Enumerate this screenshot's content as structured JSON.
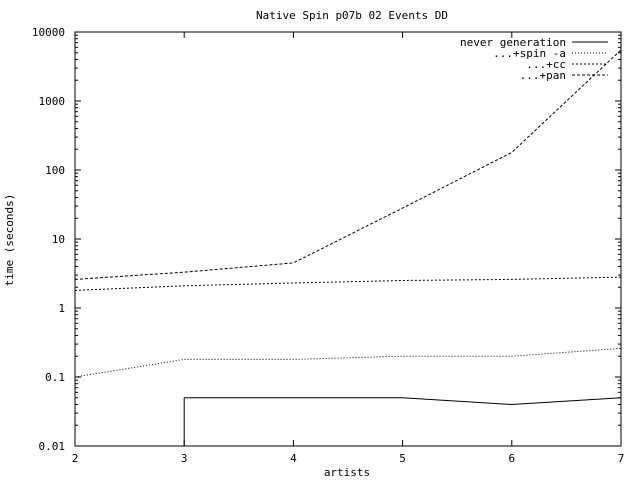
{
  "chart_data": {
    "type": "line",
    "title": "Native Spin p07b 02 Events DD",
    "xlabel": "artists",
    "ylabel": "time (seconds)",
    "x": [
      2,
      3,
      4,
      5,
      6,
      7
    ],
    "xlim": [
      2,
      7
    ],
    "ylim": [
      0.01,
      10000
    ],
    "yscale": "log",
    "x_ticks": [
      "2",
      "3",
      "4",
      "5",
      "6",
      "7"
    ],
    "y_ticks": [
      {
        "value": 0.01,
        "label": "0.01"
      },
      {
        "value": 0.1,
        "label": "0.1"
      },
      {
        "value": 1,
        "label": "1"
      },
      {
        "value": 10,
        "label": "10"
      },
      {
        "value": 100,
        "label": "100"
      },
      {
        "value": 1000,
        "label": "1000"
      },
      {
        "value": 10000,
        "label": "10000"
      }
    ],
    "grid": false,
    "legend_position": "top-right",
    "series": [
      {
        "name": "never generation",
        "dash": "solid",
        "x": [
          3,
          4,
          5,
          6,
          7
        ],
        "values": [
          0.05,
          0.05,
          0.05,
          0.04,
          0.05
        ]
      },
      {
        "name": "...+spin -a",
        "dash": "dotted",
        "x": [
          2,
          3,
          4,
          5,
          6,
          7
        ],
        "values": [
          0.1,
          0.18,
          0.18,
          0.2,
          0.2,
          0.26
        ]
      },
      {
        "name": "...+cc",
        "dash": "dashed-fine",
        "x": [
          2,
          3,
          4,
          5,
          6,
          7
        ],
        "values": [
          1.8,
          2.1,
          2.3,
          2.5,
          2.6,
          2.8
        ]
      },
      {
        "name": "...+pan",
        "dash": "dashed",
        "x": [
          2,
          3,
          4,
          5,
          6,
          7
        ],
        "values": [
          2.6,
          3.3,
          4.5,
          28,
          180,
          5500
        ]
      }
    ]
  }
}
